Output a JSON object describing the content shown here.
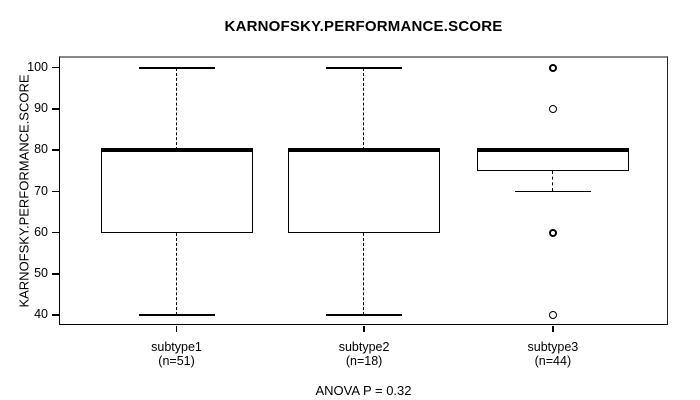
{
  "chart_data": {
    "type": "boxplot",
    "title": "KARNOFSKY.PERFORMANCE.SCORE",
    "ylabel": "KARNOFSKY.PERFORMANCE.SCORE",
    "xlabel": "",
    "annotation": "ANOVA P = 0.32",
    "ylim": [
      37.6,
      102.4
    ],
    "y_ticks": [
      40,
      50,
      60,
      70,
      80,
      90,
      100
    ],
    "grid": false,
    "legend": "none",
    "line_color": "#000000",
    "box_fill": "#ffffff",
    "groups": [
      {
        "label": "subtype1",
        "n_label": "(n=51)",
        "whisker_low": 40,
        "q1": 60,
        "median": 80,
        "q3": 80,
        "whisker_high": 100,
        "outliers": []
      },
      {
        "label": "subtype2",
        "n_label": "(n=18)",
        "whisker_low": 40,
        "q1": 60,
        "median": 80,
        "q3": 80,
        "whisker_high": 100,
        "outliers": []
      },
      {
        "label": "subtype3",
        "n_label": "(n=44)",
        "whisker_low": 70,
        "q1": 75,
        "median": 80,
        "q3": 80,
        "whisker_high": 80,
        "outliers": [
          {
            "value": 100,
            "bold": true
          },
          {
            "value": 90,
            "bold": false
          },
          {
            "value": 60,
            "bold": true
          },
          {
            "value": 40,
            "bold": false
          }
        ]
      }
    ]
  }
}
